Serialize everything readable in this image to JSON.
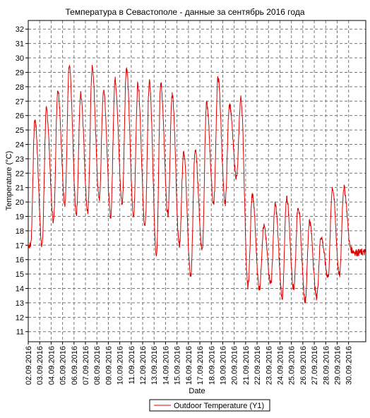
{
  "chart_data": {
    "type": "line",
    "title": "Температура в Севастополе - данные за сентябрь 2016 года",
    "xlabel": "Date",
    "ylabel": "Temperature (°C)",
    "ylim": [
      10.3,
      32.6
    ],
    "y_ticks": [
      11,
      12,
      13,
      14,
      15,
      16,
      17,
      18,
      19,
      20,
      21,
      22,
      23,
      24,
      25,
      26,
      27,
      28,
      29,
      30,
      31,
      32
    ],
    "x_tick_labels": [
      "02.09.2016",
      "03.09.2016",
      "04.09.2016",
      "05.09.2016",
      "06.09.2016",
      "07.09.2016",
      "08.09.2016",
      "09.09.2016",
      "10.09.2016",
      "11.09.2016",
      "12.09.2016",
      "13.09.2016",
      "14.09.2016",
      "15.09.2016",
      "16.09.2016",
      "17.09.2016",
      "18.09.2016",
      "19.09.2016",
      "20.09.2016",
      "21.09.2016",
      "22.09.2016",
      "23.09.2016",
      "24.09.2016",
      "25.09.2016",
      "26.09.2016",
      "27.09.2016",
      "28.09.2016",
      "29.09.2016",
      "30.09.2016"
    ],
    "xlim_days": [
      2.0,
      31.5
    ],
    "grid": true,
    "legend": "bottom-center",
    "series": [
      {
        "name": "Outdoor Temperature (Y1)",
        "color": "#dd0000",
        "daily_min": [
          17.0,
          17.0,
          18.7,
          19.9,
          19.2,
          19.3,
          20.2,
          19.0,
          19.9,
          19.1,
          18.3,
          16.4,
          19.1,
          17.0,
          14.8,
          16.7,
          19.9,
          19.9,
          21.7,
          14.1,
          14.0,
          14.4,
          13.4,
          14.0,
          13.2,
          13.4,
          14.8,
          14.9,
          16.7
        ],
        "daily_max": [
          25.7,
          26.4,
          27.8,
          29.4,
          27.5,
          29.3,
          27.8,
          28.5,
          29.3,
          28.2,
          28.3,
          28.2,
          27.5,
          23.4,
          23.6,
          26.8,
          28.6,
          26.8,
          27.2,
          20.5,
          18.3,
          19.8,
          20.3,
          19.7,
          18.7,
          17.6,
          21.0,
          21.0,
          16.5
        ]
      }
    ]
  }
}
